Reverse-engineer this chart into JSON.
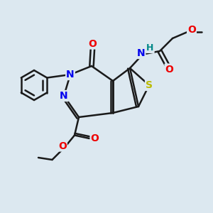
{
  "bg_color": "#dce8f0",
  "bond_color": "#1a1a1a",
  "bond_width": 1.8,
  "colors": {
    "N": "#0000ee",
    "O": "#ee0000",
    "S": "#bbbb00",
    "H": "#008888",
    "C": "#1a1a1a"
  },
  "font_size": 10
}
